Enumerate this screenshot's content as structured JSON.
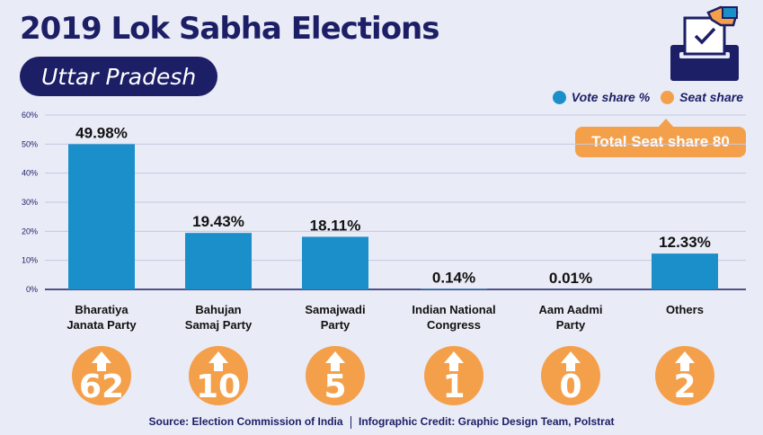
{
  "header": {
    "title": "2019 Lok Sabha Elections",
    "subtitle": "Uttar Pradesh"
  },
  "legend": {
    "vote_label": "Vote share %",
    "seat_label": "Seat share"
  },
  "total_seat_label": "Total Seat share 80",
  "footer": {
    "source": "Source: Election Commission of India",
    "credit": "Infographic Credit: Graphic Design Team, Polstrat"
  },
  "colors": {
    "bar": "#1a8fca",
    "seat": "#f4a04b",
    "navy": "#1c1f66"
  },
  "icons": [
    "ballot-box-icon",
    "arrow-up-icon"
  ],
  "chart_data": {
    "type": "bar",
    "title": "2019 Lok Sabha Elections",
    "subtitle": "Uttar Pradesh",
    "categories": [
      [
        "Bharatiya",
        "Janata Party"
      ],
      [
        "Bahujan",
        "Samaj Party"
      ],
      [
        "Samajwadi",
        "Party"
      ],
      [
        "Indian National",
        "Congress"
      ],
      [
        "Aam Aadmi",
        "Party"
      ],
      [
        "Others"
      ]
    ],
    "series": [
      {
        "name": "Vote share %",
        "values": [
          49.98,
          19.43,
          18.11,
          0.14,
          0.01,
          12.33
        ],
        "labels": [
          "49.98%",
          "19.43%",
          "18.11%",
          "0.14%",
          "0.01%",
          "12.33%"
        ]
      },
      {
        "name": "Seat share",
        "values": [
          62,
          10,
          5,
          1,
          0,
          2
        ]
      }
    ],
    "yticks": [
      "0%",
      "10%",
      "20%",
      "30%",
      "40%",
      "50%",
      "60%"
    ],
    "ylim": [
      0,
      60
    ],
    "grid": true,
    "legend_position": "top-right"
  }
}
